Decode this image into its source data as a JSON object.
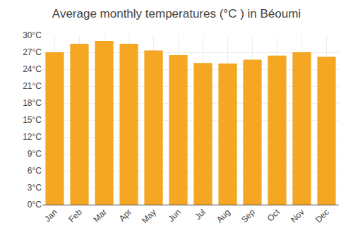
{
  "chart_data": {
    "type": "bar",
    "title": "Average monthly temperatures (°C ) in Béoumi",
    "categories": [
      "Jan",
      "Feb",
      "Mar",
      "Apr",
      "May",
      "Jun",
      "Jul",
      "Aug",
      "Sep",
      "Oct",
      "Nov",
      "Dec"
    ],
    "values": [
      27.0,
      28.5,
      29.0,
      28.5,
      27.3,
      26.5,
      25.1,
      25.0,
      25.7,
      26.4,
      27.0,
      26.2
    ],
    "color": "#F5A623",
    "ylim": [
      0,
      30
    ],
    "yticks": [
      {
        "value": 0,
        "label": "0°C"
      },
      {
        "value": 3,
        "label": "3°C"
      },
      {
        "value": 6,
        "label": "6°C"
      },
      {
        "value": 9,
        "label": "9°C"
      },
      {
        "value": 12,
        "label": "12°C"
      },
      {
        "value": 15,
        "label": "15°C"
      },
      {
        "value": 18,
        "label": "18°C"
      },
      {
        "value": 21,
        "label": "21°C"
      },
      {
        "value": 24,
        "label": "24°C"
      },
      {
        "value": 27,
        "label": "27°C"
      },
      {
        "value": 30,
        "label": "30°C"
      }
    ],
    "grid": true
  }
}
